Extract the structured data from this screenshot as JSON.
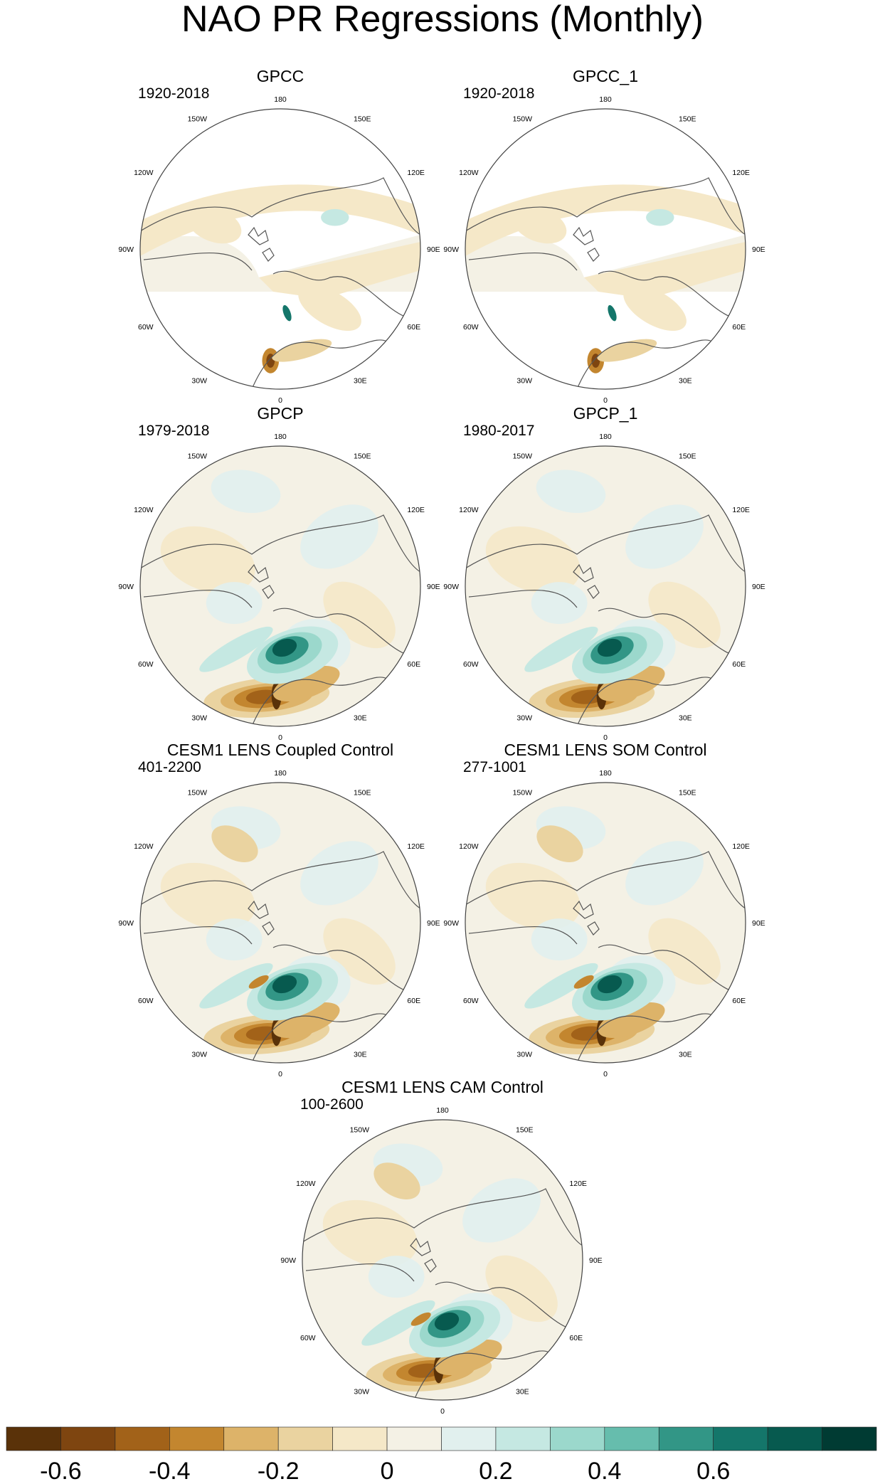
{
  "figure": {
    "title": "NAO PR Regressions (Monthly)"
  },
  "colors": {
    "land_line": "#555555",
    "map_border": "#444444"
  },
  "lon_labels": [
    "180",
    "150E",
    "120E",
    "90E",
    "60E",
    "30E",
    "0",
    "30W",
    "60W",
    "90W",
    "120W",
    "150W"
  ],
  "panels": [
    {
      "title": "GPCC",
      "period": "1920-2018",
      "field": "gpcc"
    },
    {
      "title": "GPCC_1",
      "period": "1920-2018",
      "field": "gpcc"
    },
    {
      "title": "GPCP",
      "period": "1979-2018",
      "field": "gpcp"
    },
    {
      "title": "GPCP_1",
      "period": "1980-2017",
      "field": "gpcp"
    },
    {
      "title": "CESM1 LENS Coupled Control",
      "period": "401-2200",
      "field": "model"
    },
    {
      "title": "CESM1 LENS SOM Control",
      "period": "277-1001",
      "field": "model"
    },
    {
      "title": "CESM1 LENS CAM Control",
      "period": "100-2600",
      "field": "model"
    }
  ],
  "colorbar": {
    "colors": [
      "#5a3209",
      "#7e4510",
      "#a26219",
      "#c3862f",
      "#ddb369",
      "#ead3a0",
      "#f5e8c8",
      "#f4f1e5",
      "#e1f0ee",
      "#c5e8e2",
      "#9bd8cc",
      "#66bdad",
      "#329686",
      "#14766a",
      "#075a4f",
      "#003b33"
    ],
    "tick_labels": [
      "-0.6",
      "-0.4",
      "-0.2",
      "0",
      "0.2",
      "0.4",
      "0.6"
    ]
  }
}
